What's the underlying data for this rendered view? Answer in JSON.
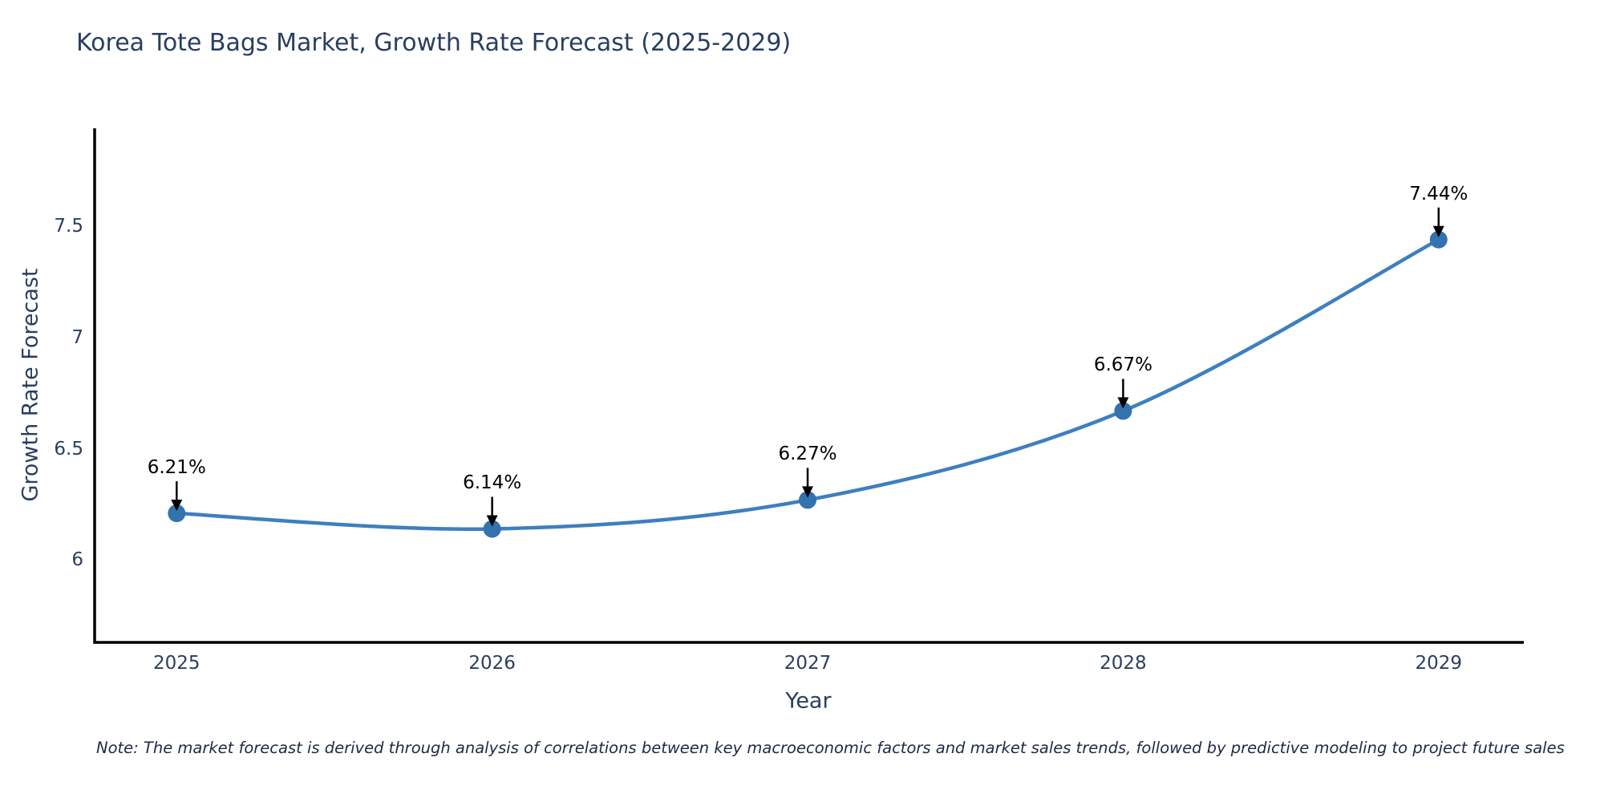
{
  "chart_data": {
    "type": "line",
    "title": "Korea Tote Bags Market, Growth Rate Forecast (2025-2029)",
    "x": [
      2025,
      2026,
      2027,
      2028,
      2029
    ],
    "x_tick_labels": [
      "2025",
      "2026",
      "2027",
      "2028",
      "2029"
    ],
    "y": [
      6.21,
      6.14,
      6.27,
      6.67,
      7.44
    ],
    "point_labels": [
      "6.21%",
      "6.14%",
      "6.27%",
      "6.67%",
      "7.44%"
    ],
    "xlabel": "Year",
    "ylabel": "Growth Rate Forecast",
    "yticks": [
      6,
      6.5,
      7,
      7.5
    ],
    "ytick_labels": [
      "6",
      "6.5",
      "7",
      "7.5"
    ],
    "xlim": [
      2024.74,
      2029.27
    ],
    "ylim": [
      5.63,
      7.94
    ],
    "grid": false,
    "legend": "none",
    "line_shape": "spline",
    "line_color": "#3d7fc1",
    "marker_color": "#3272ae",
    "axis_color": "#000000",
    "text_color": "#2a3f5f",
    "annotation_arrow_color": "#000000",
    "note": "Note: The market forecast is derived through analysis of correlations between key macroeconomic factors and market sales trends, followed by predictive modeling to project future sales"
  }
}
